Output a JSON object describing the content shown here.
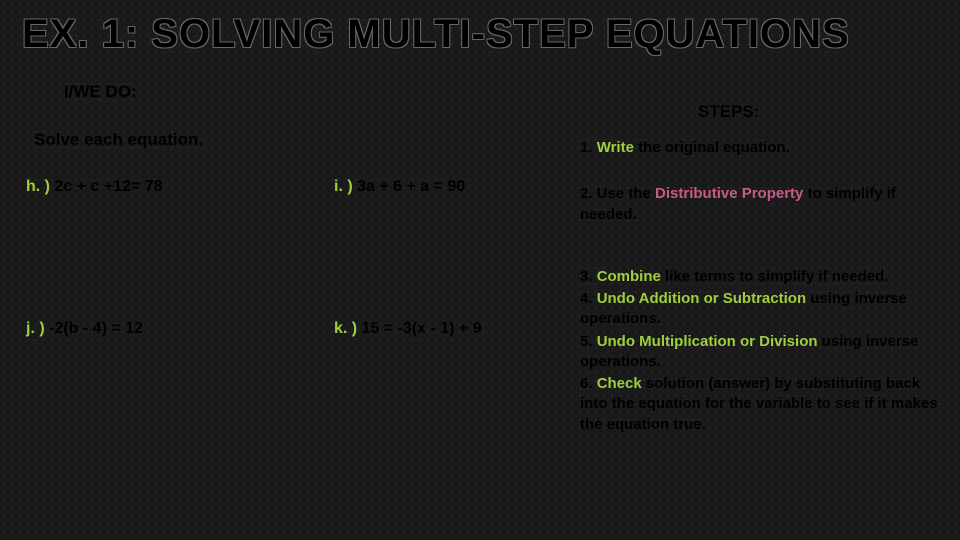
{
  "title": "EX. 1:  SOLVING MULTI-STEP EQUATIONS",
  "subheader": "I/WE DO:",
  "instruction": "Solve each equation.",
  "steps_header": "STEPS:",
  "problems": {
    "h": {
      "label": "h. )",
      "text": " 2c + c +12= 78"
    },
    "i": {
      "label": "i. )",
      "text": "  3a + 6 + a = 90"
    },
    "j": {
      "label": "j. )",
      "text": "  -2(b - 4) = 12"
    },
    "k": {
      "label": "k. )",
      "text": " 15 = -3(x - 1) + 9"
    }
  },
  "steps": {
    "s1": {
      "num": "1.  ",
      "key": "Write",
      "rest": " the original equation."
    },
    "s2": {
      "num": "2.  Use the ",
      "key": "Distributive Property",
      "rest": " to simplify if needed."
    },
    "s3": {
      "num": "3.  ",
      "key": "Combine",
      "rest": " like terms to simplify if needed."
    },
    "s4": {
      "num": "4.  ",
      "key": "Undo Addition or Subtraction",
      "rest": " using inverse operations."
    },
    "s5": {
      "num": "5.  ",
      "key": "Undo Multiplication or Division",
      "rest": " using inverse operations."
    },
    "s6": {
      "num": "6.  ",
      "key": "Check",
      "rest": " solution (answer) by substituting back into the equation for the variable to see if it makes the equation true."
    }
  },
  "colors": {
    "background": "#1a1a1a",
    "text": "#000000",
    "accent_green": "#9fcf3f",
    "accent_pink": "#c85a8a"
  }
}
